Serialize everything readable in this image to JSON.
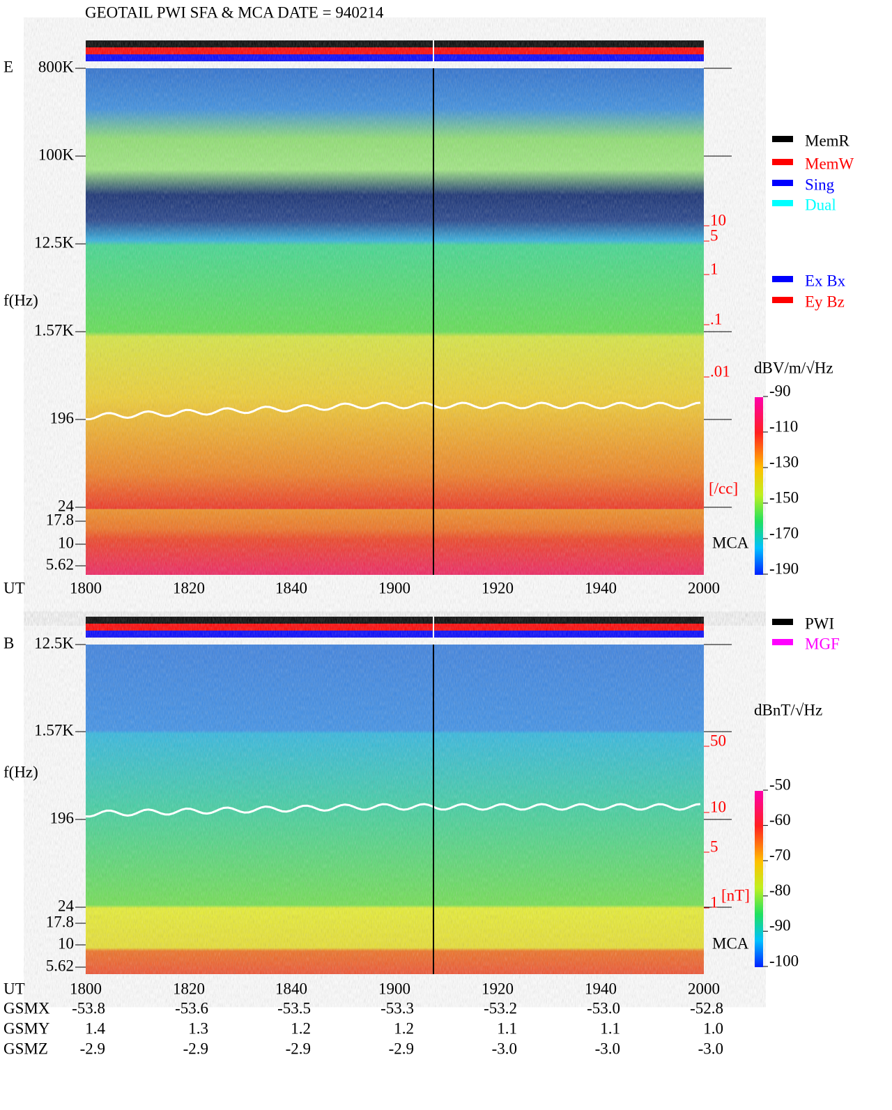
{
  "title": "GEOTAIL  PWI SFA & MCA   DATE = 940214",
  "panels": [
    {
      "label": "E",
      "ticks": [
        "800K",
        "100K",
        "12.5K",
        "1.57K",
        "196",
        "24",
        "17.8",
        "10",
        "5.62"
      ],
      "axis_label": "f(Hz)",
      "scale_ticks": [
        "10",
        "5",
        "1",
        ".1",
        ".01"
      ],
      "scale_unit": "[/cc]",
      "mca": "MCA",
      "time_label": "UT",
      "times": [
        "1800",
        "1820",
        "1840",
        "1900",
        "1920",
        "1940",
        "2000"
      ],
      "legend": [
        {
          "name": "MemR",
          "color": "#000000"
        },
        {
          "name": "MemW",
          "color": "#ff0000"
        },
        {
          "name": "Sing",
          "color": "#0000ff"
        },
        {
          "name": "Dual",
          "color": "#00ffff"
        }
      ],
      "components": [
        {
          "name": "Ex Bx",
          "color": "#0000ff"
        },
        {
          "name": "Ey Bz",
          "color": "#ff0000"
        }
      ],
      "unit": "dBV/m/√Hz",
      "colorbar_ticks": [
        "-90",
        "-110",
        "-130",
        "-150",
        "-170",
        "-190"
      ]
    },
    {
      "label": "B",
      "ticks": [
        "12.5K",
        "1.57K",
        "196",
        "24",
        "17.8",
        "10",
        "5.62"
      ],
      "axis_label": "f(Hz)",
      "scale_ticks": [
        "50",
        "10",
        "5",
        "1"
      ],
      "scale_unit": "[nT]",
      "mca": "MCA",
      "time_label": "UT",
      "times": [
        "1800",
        "1820",
        "1840",
        "1900",
        "1920",
        "1940",
        "2000"
      ],
      "legend": [
        {
          "name": "PWI",
          "color": "#000000"
        },
        {
          "name": "MGF",
          "color": "#ff00ff"
        }
      ],
      "components": [],
      "unit": "dBnT/√Hz",
      "colorbar_ticks": [
        "-50",
        "-60",
        "-70",
        "-80",
        "-90",
        "-100"
      ]
    }
  ],
  "orbit": [
    {
      "name": "GSMX",
      "values": [
        "-53.8",
        "-53.6",
        "-53.5",
        "-53.3",
        "-53.2",
        "-53.0",
        "-52.8"
      ]
    },
    {
      "name": "GSMY",
      "values": [
        "1.4",
        "1.3",
        "1.2",
        "1.2",
        "1.1",
        "1.1",
        "1.0"
      ]
    },
    {
      "name": "GSMZ",
      "values": [
        "-2.9",
        "-2.9",
        "-2.9",
        "-2.9",
        "-3.0",
        "-3.0",
        "-3.0"
      ]
    }
  ]
}
